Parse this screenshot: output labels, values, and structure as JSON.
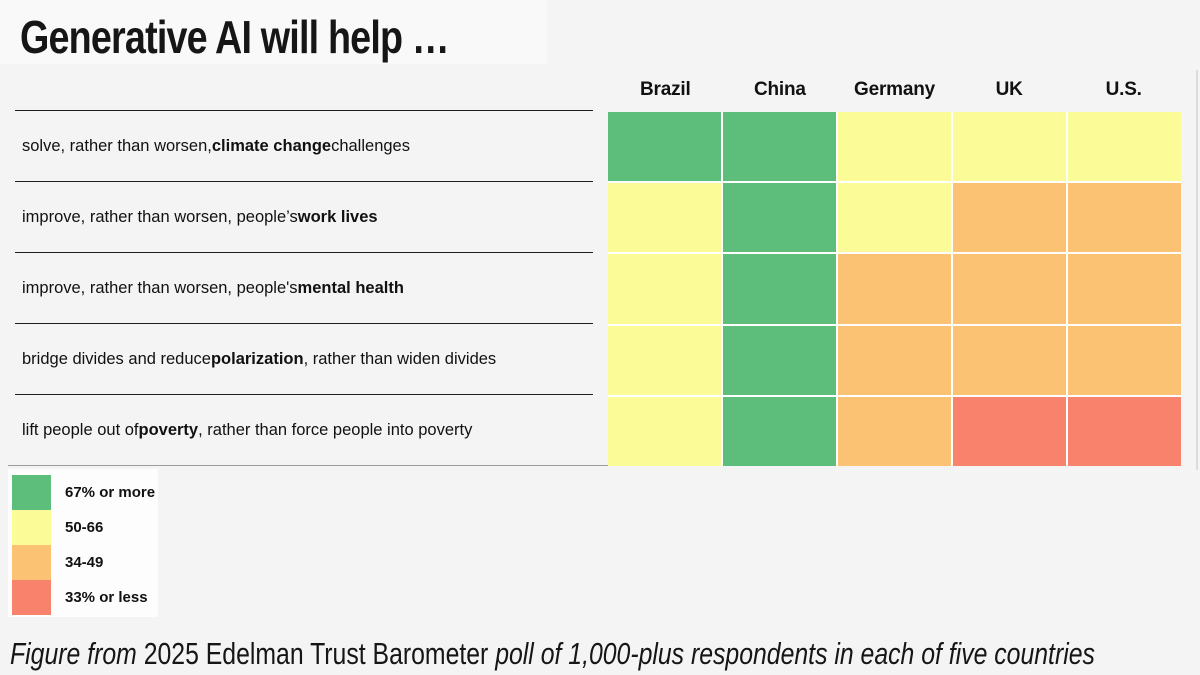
{
  "title": "Generative AI will help …",
  "colors": {
    "green": "#5dbd7b",
    "yellow": "#fbfb98",
    "orange": "#fbc274",
    "red": "#f8826c",
    "page_background": "#f4f4f4",
    "text": "#141414"
  },
  "columns": [
    "Brazil",
    "China",
    "Germany",
    "UK",
    "U.S."
  ],
  "rows": [
    {
      "label_parts": [
        {
          "text": "solve, rather than worsen, ",
          "bold": false
        },
        {
          "text": "climate change",
          "bold": true
        },
        {
          "text": " challenges",
          "bold": false
        }
      ],
      "cells": [
        "green",
        "green",
        "yellow",
        "yellow",
        "yellow"
      ]
    },
    {
      "label_parts": [
        {
          "text": "improve, rather than worsen, people’s ",
          "bold": false
        },
        {
          "text": "work lives",
          "bold": true
        }
      ],
      "cells": [
        "yellow",
        "green",
        "yellow",
        "orange",
        "orange"
      ]
    },
    {
      "label_parts": [
        {
          "text": "improve, rather than worsen, people's ",
          "bold": false
        },
        {
          "text": "mental health",
          "bold": true
        }
      ],
      "cells": [
        "yellow",
        "green",
        "orange",
        "orange",
        "orange"
      ]
    },
    {
      "label_parts": [
        {
          "text": "bridge divides and reduce ",
          "bold": false
        },
        {
          "text": "polarization",
          "bold": true
        },
        {
          "text": ", rather than widen divides",
          "bold": false
        }
      ],
      "cells": [
        "yellow",
        "green",
        "orange",
        "orange",
        "orange"
      ]
    },
    {
      "label_parts": [
        {
          "text": "lift people out of ",
          "bold": false
        },
        {
          "text": "poverty",
          "bold": true
        },
        {
          "text": ", rather than force people into poverty",
          "bold": false
        }
      ],
      "cells": [
        "yellow",
        "green",
        "orange",
        "red",
        "red"
      ]
    }
  ],
  "legend": [
    {
      "label": "67% or more",
      "color": "green"
    },
    {
      "label": "50-66",
      "color": "yellow"
    },
    {
      "label": "34-49",
      "color": "orange"
    },
    {
      "label": "33% or less",
      "color": "red"
    }
  ],
  "caption_parts": [
    {
      "text": "Figure from ",
      "italic": true
    },
    {
      "text": "2025 Edelman Trust Barometer",
      "italic": false
    },
    {
      "text": " poll of 1,000-plus respondents in each of five countries",
      "italic": true
    }
  ],
  "chart_data": {
    "type": "heatmap",
    "title": "Generative AI will help …",
    "columns": [
      "Brazil",
      "China",
      "Germany",
      "UK",
      "U.S."
    ],
    "rows": [
      "solve, rather than worsen, climate change challenges",
      "improve, rather than worsen, people’s work lives",
      "improve, rather than worsen, people's mental health",
      "bridge divides and reduce polarization, rather than widen divides",
      "lift people out of poverty, rather than force people into poverty"
    ],
    "value_bins": {
      "green": "67% or more",
      "yellow": "50-66",
      "orange": "34-49",
      "red": "33% or less"
    },
    "cells": [
      [
        "67% or more",
        "67% or more",
        "50-66",
        "50-66",
        "50-66"
      ],
      [
        "50-66",
        "67% or more",
        "50-66",
        "34-49",
        "34-49"
      ],
      [
        "50-66",
        "67% or more",
        "34-49",
        "34-49",
        "34-49"
      ],
      [
        "50-66",
        "67% or more",
        "34-49",
        "34-49",
        "34-49"
      ],
      [
        "50-66",
        "67% or more",
        "34-49",
        "33% or less",
        "33% or less"
      ]
    ],
    "legend_position": "bottom-left",
    "source_note": "Figure from 2025 Edelman Trust Barometer poll of 1,000-plus respondents in each of five countries"
  }
}
